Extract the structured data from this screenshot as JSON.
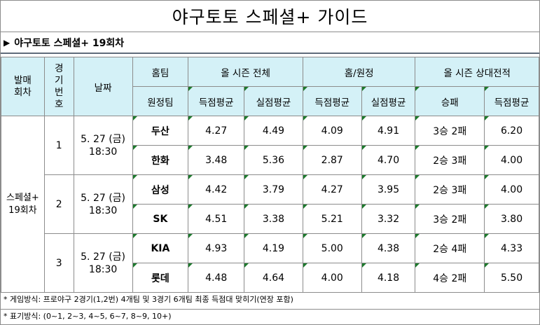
{
  "title": "야구토토 스페셜+ 가이드",
  "subtitle": "야구토토 스페셜+ 19회차",
  "headers": {
    "round": "발매\n회차",
    "game_no": "경\n기\n번\n호",
    "date": "날짜",
    "home_team": "홈팀",
    "away_team": "원정팀",
    "season_total": "올 시즌 전체",
    "home_away": "홈/원정",
    "head_to_head": "올 시즌 상대전적",
    "score_avg": "득점평균",
    "allowed_avg": "실점평균",
    "record": "승패"
  },
  "round_label": "스페셜+\n19회차",
  "games": [
    {
      "no": "1",
      "date": "5. 27 (금)\n18:30",
      "teams": [
        {
          "name": "두산",
          "season_score": "4.27",
          "season_allowed": "4.49",
          "ha_score": "4.09",
          "ha_allowed": "4.91",
          "record": "3승 2패",
          "h2h_score": "6.20"
        },
        {
          "name": "한화",
          "season_score": "3.48",
          "season_allowed": "5.36",
          "ha_score": "2.87",
          "ha_allowed": "4.70",
          "record": "2승 3패",
          "h2h_score": "4.00"
        }
      ]
    },
    {
      "no": "2",
      "date": "5. 27 (금)\n18:30",
      "teams": [
        {
          "name": "삼성",
          "season_score": "4.42",
          "season_allowed": "3.79",
          "ha_score": "4.27",
          "ha_allowed": "3.95",
          "record": "2승 3패",
          "h2h_score": "4.00"
        },
        {
          "name": "SK",
          "season_score": "4.51",
          "season_allowed": "3.38",
          "ha_score": "5.21",
          "ha_allowed": "3.32",
          "record": "3승 2패",
          "h2h_score": "3.80"
        }
      ]
    },
    {
      "no": "3",
      "date": "5. 27 (금)\n18:30",
      "teams": [
        {
          "name": "KIA",
          "season_score": "4.93",
          "season_allowed": "4.19",
          "ha_score": "5.00",
          "ha_allowed": "4.38",
          "record": "2승 4패",
          "h2h_score": "4.33"
        },
        {
          "name": "롯데",
          "season_score": "4.48",
          "season_allowed": "4.64",
          "ha_score": "4.00",
          "ha_allowed": "4.18",
          "record": "4승 2패",
          "h2h_score": "5.50"
        }
      ]
    }
  ],
  "footnotes": [
    "* 게임방식: 프로야구 2경기(1,2번) 4개팀 및 3경기 6개팀 최종 득점대 맞히기(연장 포함)",
    "* 표기방식: (0~1, 2~3, 4~5, 6~7, 8~9, 10+)"
  ],
  "colors": {
    "header_bg": "#d4f1f7",
    "corner_mark": "#1c7a2c",
    "border": "#8c8c8c"
  }
}
